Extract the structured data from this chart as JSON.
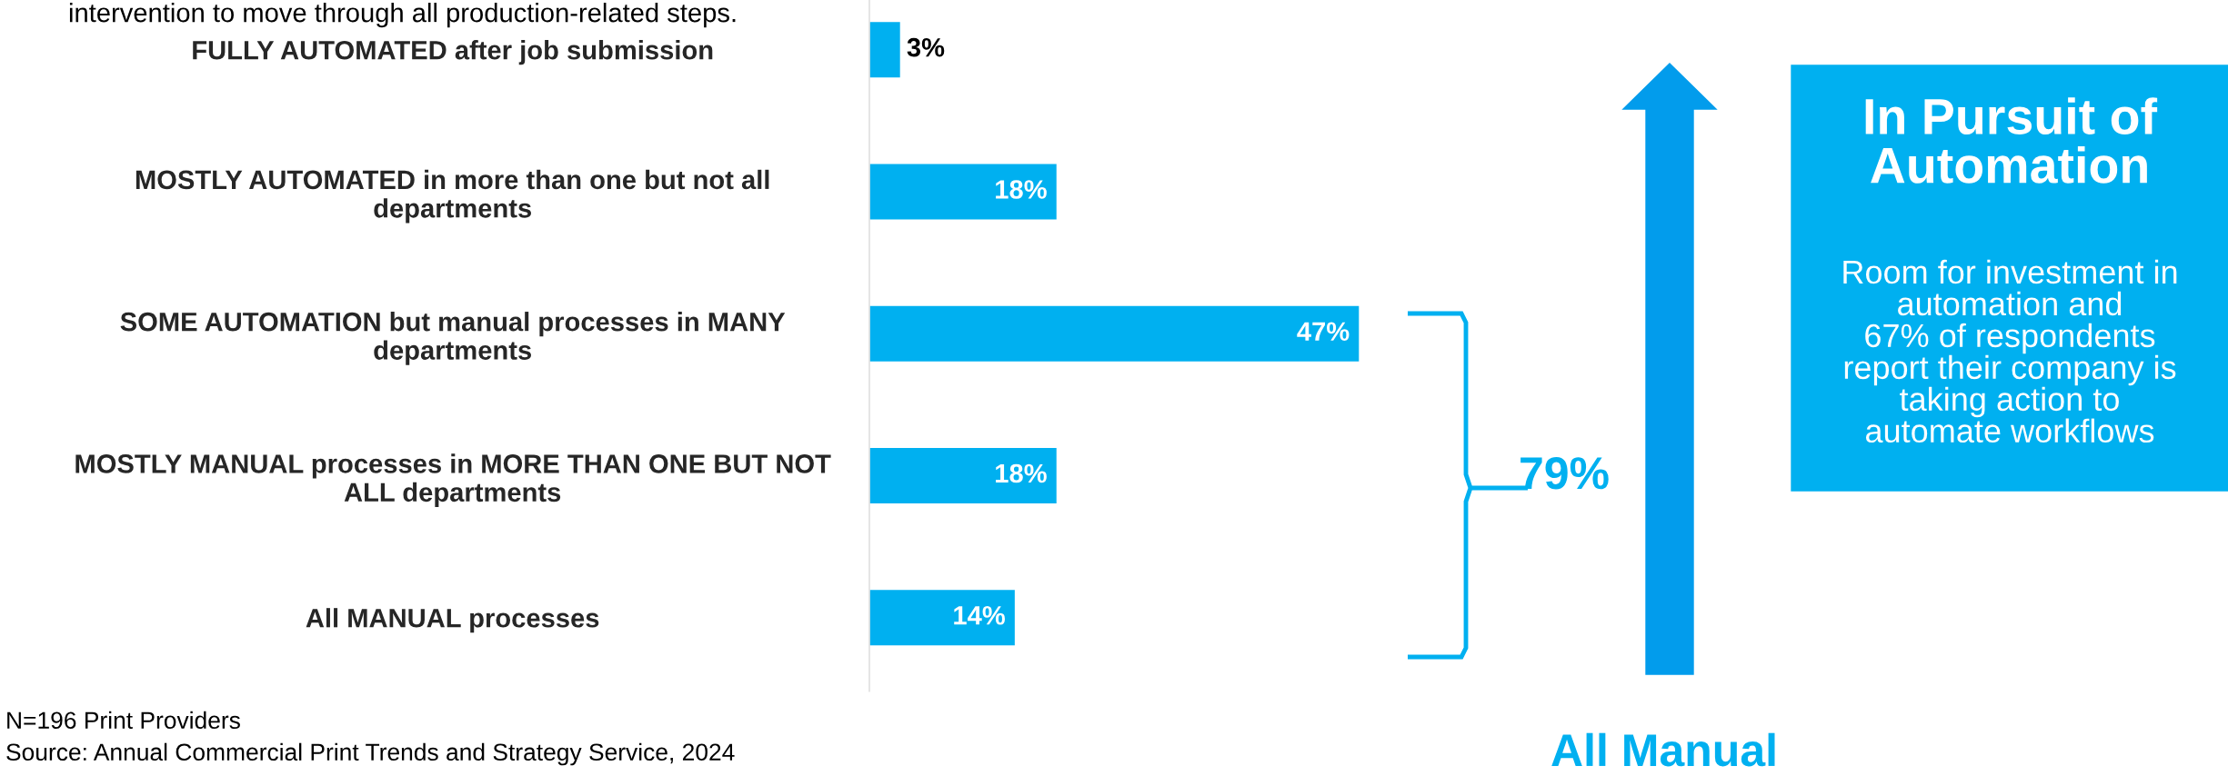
{
  "chart_data": {
    "type": "bar",
    "orientation": "horizontal",
    "categories": [
      "FULLY AUTOMATED after job submission",
      "MOSTLY AUTOMATED in more than one but not all\ndepartments",
      "SOME AUTOMATION but manual processes in MANY\ndepartments",
      "MOSTLY MANUAL processes in MORE THAN ONE BUT NOT\nALL departments",
      "All MANUAL processes"
    ],
    "values": [
      3,
      18,
      47,
      18,
      14
    ],
    "value_labels": [
      "3%",
      "18%",
      "47%",
      "18%",
      "14%"
    ],
    "color": "#00b0f0",
    "annotations": [
      "intervention to move through all production-related steps.",
      "79%",
      "All Manual",
      "In Pursuit of\nAutomation",
      "Room for investment in\nautomation and\n67% of respondents\nreport their company is\ntaking action to\nautomate workflows",
      "N=196 Print Providers",
      "Source: Annual Commercial Print Trends and Strategy Service, 2024"
    ]
  }
}
